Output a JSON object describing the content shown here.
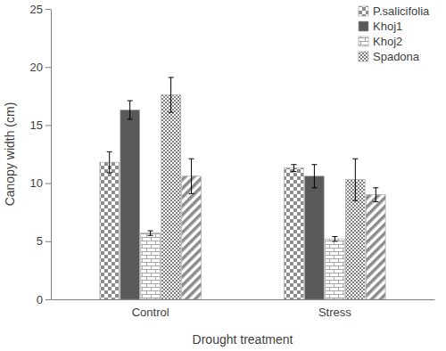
{
  "chart_data": {
    "type": "bar",
    "x_label": "Drought treatment",
    "y_label": "Canopy width (cm)",
    "categories": [
      "Control",
      "Stress"
    ],
    "series": [
      {
        "name": "P.salicifolia",
        "color": "#8c8c8c",
        "values": [
          11.8,
          11.3
        ],
        "errors": [
          0.9,
          0.3
        ]
      },
      {
        "name": "Khoj1",
        "color": "#595959",
        "values": [
          16.3,
          10.6
        ],
        "errors": [
          0.8,
          1.0
        ]
      },
      {
        "name": "Khoj2",
        "color": "#a6a6a6",
        "values": [
          5.7,
          5.2
        ],
        "errors": [
          0.2,
          0.2
        ]
      },
      {
        "name": "Spadona",
        "color": "#808080",
        "values": [
          17.6,
          10.3
        ],
        "errors": [
          1.5,
          1.8
        ]
      },
      {
        "color": "#8c8c8c",
        "values": [
          10.6,
          9.0
        ],
        "errors": [
          1.5,
          0.6
        ]
      }
    ],
    "ylim": [
      0,
      25
    ],
    "yticks": [
      0,
      5,
      10,
      15,
      20,
      25
    ],
    "grid": false,
    "legend": "top-right"
  }
}
